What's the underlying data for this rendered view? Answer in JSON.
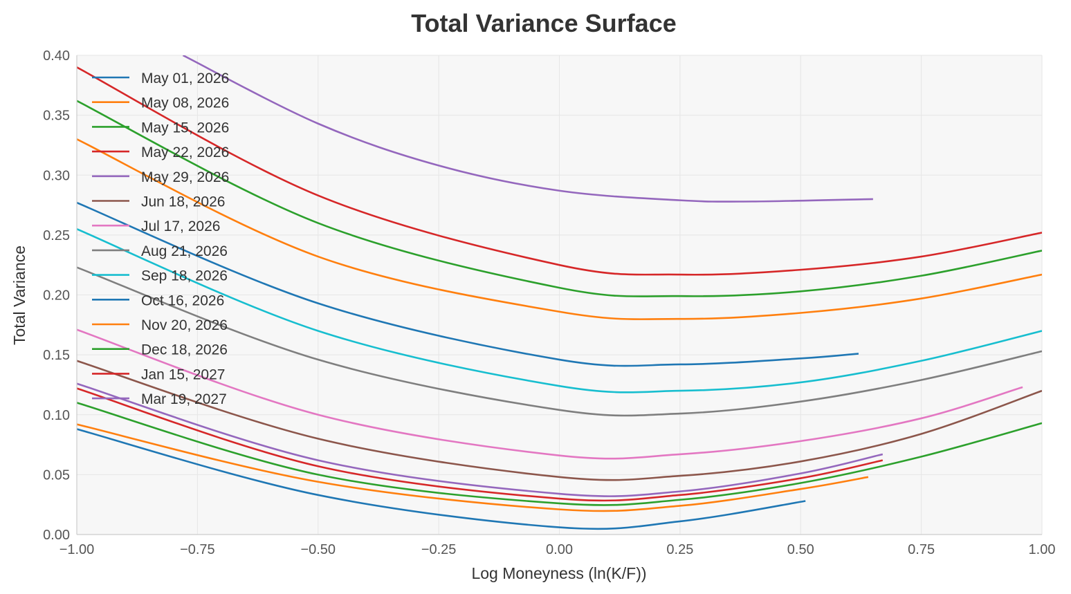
{
  "chart_data": {
    "type": "line",
    "title": "Total Variance Surface",
    "xlabel": "Log Moneyness (ln(K/F))",
    "ylabel": "Total Variance",
    "xlim": [
      -1.0,
      1.0
    ],
    "ylim": [
      0.0,
      0.4
    ],
    "xticks": [
      "−1.00",
      "−0.75",
      "−0.50",
      "−0.25",
      "0.00",
      "0.25",
      "0.50",
      "0.75",
      "1.00"
    ],
    "yticks": [
      "0.00",
      "0.05",
      "0.10",
      "0.15",
      "0.20",
      "0.25",
      "0.30",
      "0.35",
      "0.40"
    ],
    "grid": true,
    "legend_placement": "top-left",
    "series": [
      {
        "name": "May 01, 2026",
        "color": "#1f77b4",
        "x": [
          -1,
          -0.5,
          0,
          0.25,
          0.51
        ],
        "y": [
          0.088,
          0.033,
          0.006,
          0.011,
          0.028
        ]
      },
      {
        "name": "May 08, 2026",
        "color": "#ff7f0e",
        "x": [
          -1,
          -0.5,
          0,
          0.25,
          0.5,
          0.64
        ],
        "y": [
          0.092,
          0.044,
          0.021,
          0.024,
          0.038,
          0.048
        ]
      },
      {
        "name": "May 15, 2026",
        "color": "#2ca02c",
        "x": [
          -1,
          -0.5,
          0,
          0.25,
          0.5,
          0.75,
          1
        ],
        "y": [
          0.11,
          0.05,
          0.026,
          0.029,
          0.043,
          0.065,
          0.093
        ]
      },
      {
        "name": "May 22, 2026",
        "color": "#d62728",
        "x": [
          -1,
          -0.5,
          0,
          0.25,
          0.5,
          0.67
        ],
        "y": [
          0.122,
          0.057,
          0.03,
          0.033,
          0.047,
          0.062
        ]
      },
      {
        "name": "May 29, 2026",
        "color": "#9467bd",
        "x": [
          -1,
          -0.5,
          0,
          0.25,
          0.5,
          0.67
        ],
        "y": [
          0.126,
          0.062,
          0.034,
          0.036,
          0.051,
          0.067
        ]
      },
      {
        "name": "Jun 18, 2026",
        "color": "#8c564b",
        "x": [
          -1,
          -0.5,
          0,
          0.25,
          0.5,
          0.75,
          1
        ],
        "y": [
          0.145,
          0.08,
          0.048,
          0.049,
          0.061,
          0.084,
          0.12
        ]
      },
      {
        "name": "Jul 17, 2026",
        "color": "#e377c2",
        "x": [
          -1,
          -0.5,
          0,
          0.25,
          0.5,
          0.75,
          0.96
        ],
        "y": [
          0.171,
          0.1,
          0.066,
          0.067,
          0.078,
          0.097,
          0.123
        ]
      },
      {
        "name": "Aug 21, 2026",
        "color": "#7f7f7f",
        "x": [
          -1,
          -0.5,
          0,
          0.25,
          0.5,
          0.75,
          1
        ],
        "y": [
          0.223,
          0.146,
          0.104,
          0.101,
          0.111,
          0.129,
          0.153
        ]
      },
      {
        "name": "Sep 18, 2026",
        "color": "#17becf",
        "x": [
          -1,
          -0.5,
          0,
          0.25,
          0.5,
          0.75,
          1
        ],
        "y": [
          0.255,
          0.17,
          0.124,
          0.12,
          0.127,
          0.145,
          0.17
        ]
      },
      {
        "name": "Oct 16, 2026",
        "color": "#1f77b4",
        "x": [
          -1,
          -0.5,
          0,
          0.25,
          0.5,
          0.62
        ],
        "y": [
          0.277,
          0.193,
          0.146,
          0.142,
          0.147,
          0.151
        ]
      },
      {
        "name": "Nov 20, 2026",
        "color": "#ff7f0e",
        "x": [
          -1,
          -0.5,
          0,
          0.25,
          0.5,
          0.75,
          1
        ],
        "y": [
          0.33,
          0.232,
          0.186,
          0.18,
          0.185,
          0.197,
          0.217
        ]
      },
      {
        "name": "Dec 18, 2026",
        "color": "#2ca02c",
        "x": [
          -1,
          -0.5,
          0,
          0.25,
          0.5,
          0.75,
          1
        ],
        "y": [
          0.362,
          0.26,
          0.206,
          0.199,
          0.203,
          0.216,
          0.237
        ]
      },
      {
        "name": "Jan 15, 2027",
        "color": "#d62728",
        "x": [
          -1,
          -0.5,
          0,
          0.25,
          0.5,
          0.75,
          1
        ],
        "y": [
          0.39,
          0.283,
          0.225,
          0.217,
          0.221,
          0.232,
          0.252
        ]
      },
      {
        "name": "Mar 19, 2027",
        "color": "#9467bd",
        "x": [
          -0.78,
          -0.5,
          -0.25,
          0,
          0.25,
          0.4,
          0.65
        ],
        "y": [
          0.4,
          0.343,
          0.308,
          0.287,
          0.279,
          0.278,
          0.28
        ]
      }
    ]
  }
}
